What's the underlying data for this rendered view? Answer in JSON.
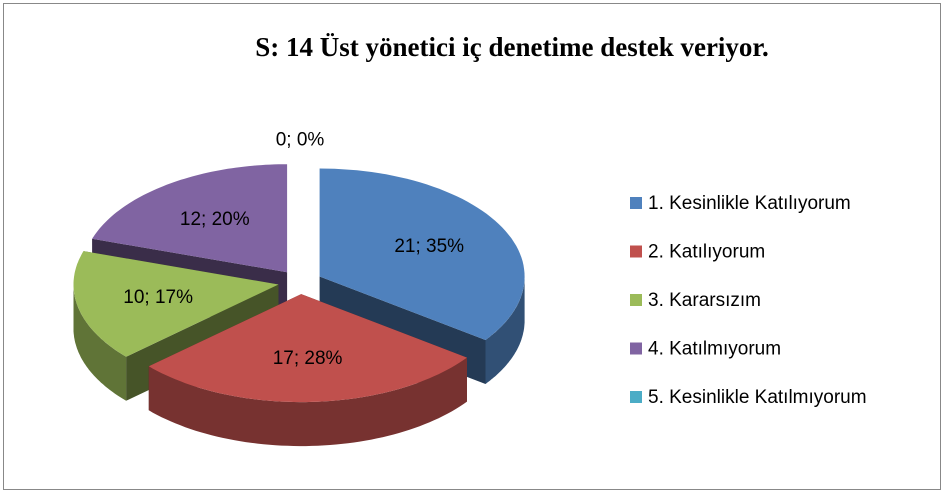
{
  "chart_data": {
    "type": "pie",
    "title": "S: 14 Üst yönetici iç denetime destek veriyor.",
    "categories": [
      "1. Kesinlikle Katılıyorum",
      "2. Katılıyorum",
      "3. Kararsızım",
      "4. Katılmıyorum",
      "5. Kesinlikle Katılmıyorum"
    ],
    "values": [
      21,
      17,
      10,
      12,
      0
    ],
    "value_labels": [
      "21; 35%",
      "17; 28%",
      "10; 17%",
      "12; 20%",
      "0; 0%"
    ],
    "colors": [
      "#4f81bd",
      "#c0504d",
      "#9bbb59",
      "#8064a2",
      "#4bacc6"
    ],
    "legend": "right"
  }
}
